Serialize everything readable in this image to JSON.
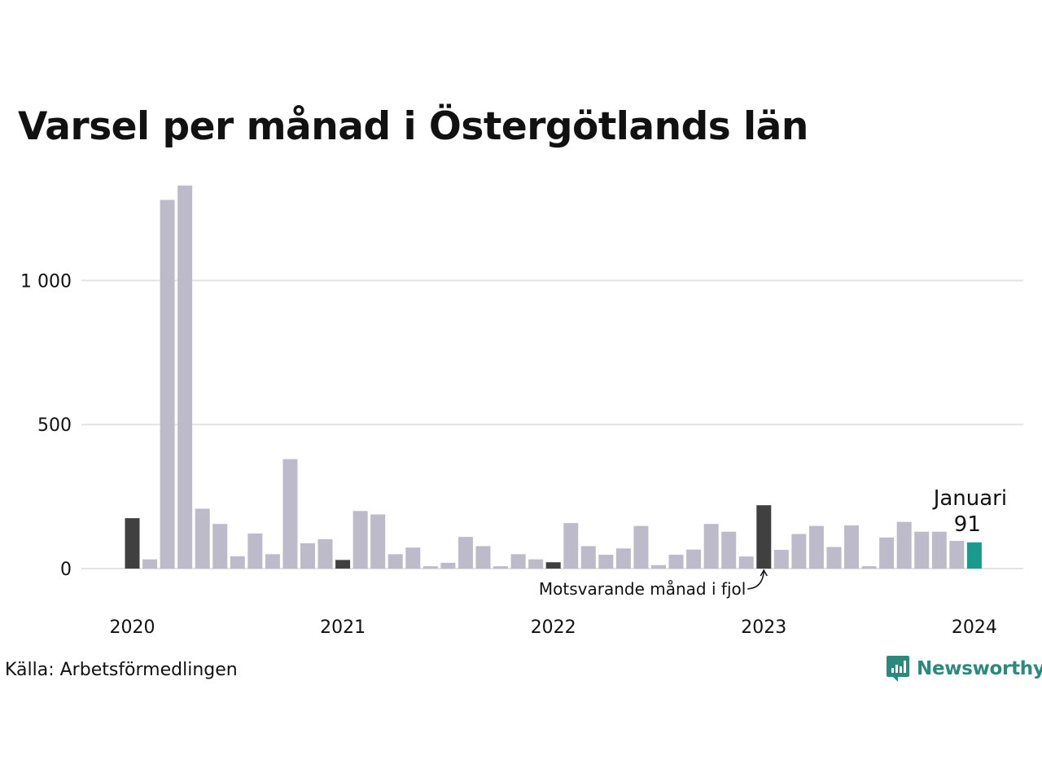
{
  "title": "Varsel per månad i Östergötlands län",
  "source": "Källa: Arbetsförmedlingen",
  "brand": {
    "name": "Newsworthy",
    "icon": "newsworthy-logo-icon"
  },
  "colors": {
    "default": "#bdbbca",
    "same_month": "#404040",
    "current": "#1a9a8a",
    "grid": "#e3e3e3"
  },
  "chart_data": {
    "type": "bar",
    "ylim": [
      0,
      1400
    ],
    "yticks": [
      0,
      500,
      1000
    ],
    "ytick_labels": [
      "0",
      "500",
      "1 000"
    ],
    "xtick_labels": [
      "2020",
      "2021",
      "2022",
      "2023",
      "2024"
    ],
    "xtick_months": [
      "2020-01",
      "2021-01",
      "2022-01",
      "2023-01",
      "2024-01"
    ],
    "categories": [
      "2020-01",
      "2020-02",
      "2020-03",
      "2020-04",
      "2020-05",
      "2020-06",
      "2020-07",
      "2020-08",
      "2020-09",
      "2020-10",
      "2020-11",
      "2020-12",
      "2021-01",
      "2021-02",
      "2021-03",
      "2021-04",
      "2021-05",
      "2021-06",
      "2021-07",
      "2021-08",
      "2021-09",
      "2021-10",
      "2021-11",
      "2021-12",
      "2022-01",
      "2022-02",
      "2022-03",
      "2022-04",
      "2022-05",
      "2022-06",
      "2022-07",
      "2022-08",
      "2022-09",
      "2022-10",
      "2022-11",
      "2022-12",
      "2023-01",
      "2023-02",
      "2023-03",
      "2023-04",
      "2023-05",
      "2023-06",
      "2023-07",
      "2023-08",
      "2023-09",
      "2023-10",
      "2023-11",
      "2023-12",
      "2024-01"
    ],
    "values": [
      175,
      32,
      1280,
      1330,
      208,
      155,
      43,
      122,
      50,
      380,
      88,
      102,
      30,
      200,
      188,
      50,
      73,
      8,
      20,
      110,
      78,
      8,
      50,
      32,
      22,
      158,
      78,
      48,
      70,
      148,
      12,
      48,
      66,
      155,
      128,
      42,
      220,
      65,
      120,
      148,
      75,
      150,
      8,
      108,
      162,
      128,
      128,
      96,
      91
    ],
    "highlight_same_month": [
      "2020-01",
      "2021-01",
      "2022-01",
      "2023-01"
    ],
    "highlight_current": "2024-01",
    "annotations": {
      "current_month_label": "Januari",
      "current_value_label": "91",
      "same_month_label": "Motsvarande månad i fjol"
    }
  }
}
